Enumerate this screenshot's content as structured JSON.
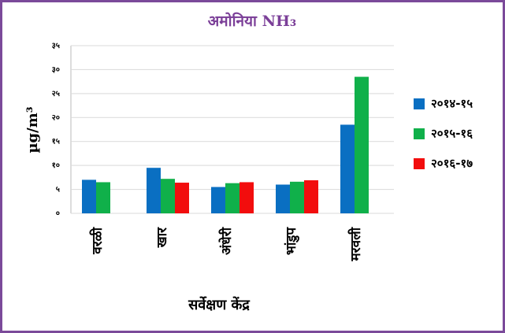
{
  "chart_data": {
    "type": "bar",
    "title": "अमोनिया NH₃",
    "y_label": "µg/m³",
    "x_label": "सर्वेक्षण केंद्र",
    "categories": [
      "वरळी",
      "खार",
      "अंधेरी",
      "भांडुप",
      "मरवली"
    ],
    "series": [
      {
        "name": "२०१४-१५",
        "color": "#0a6fc2",
        "values": [
          7,
          9.5,
          5.5,
          6,
          18.5
        ]
      },
      {
        "name": "२०१५-१६",
        "color": "#10b04a",
        "values": [
          6.5,
          7.2,
          6.3,
          6.6,
          28.5
        ]
      },
      {
        "name": "२०१६-१७",
        "color": "#f20d0d",
        "values": [
          null,
          6.4,
          6.5,
          6.9,
          null
        ]
      }
    ],
    "ylim": [
      0,
      35
    ],
    "yticks": [
      {
        "value": 0,
        "label": "०"
      },
      {
        "value": 5,
        "label": "५"
      },
      {
        "value": 10,
        "label": "१०"
      },
      {
        "value": 15,
        "label": "१५"
      },
      {
        "value": 20,
        "label": "२०"
      },
      {
        "value": 25,
        "label": "२५"
      },
      {
        "value": 30,
        "label": "३०"
      },
      {
        "value": 35,
        "label": "३५"
      }
    ],
    "grid": true,
    "legend": "right"
  }
}
